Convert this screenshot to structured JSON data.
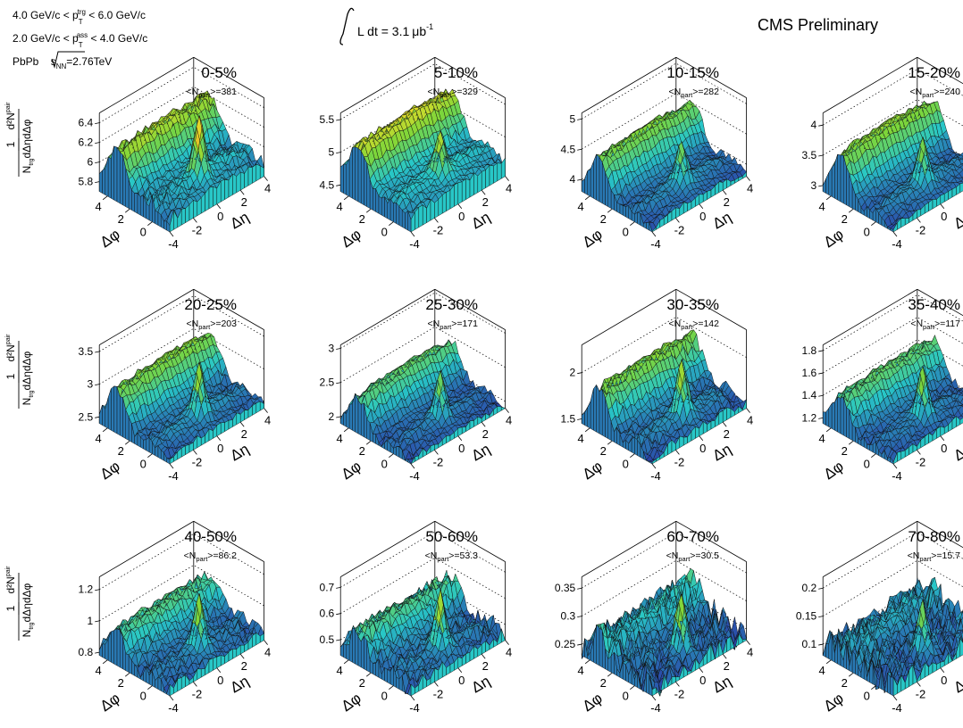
{
  "header": {
    "trigger_cut": "4.0 GeV/c < p",
    "trigger_sup": "trg",
    "trigger_sub": "T",
    "trigger_tail": " < 6.0 GeV/c",
    "assoc_cut": "2.0 GeV/c < p",
    "assoc_sup": "ass",
    "assoc_sub": "T",
    "assoc_tail": " < 4.0 GeV/c",
    "system_pre": "PbPb ",
    "system_sqrt": "s",
    "system_sub": "NN",
    "system_post": "=2.76TeV",
    "lumi_pre": "L dt = 3.1",
    "lumi_unit": "μb",
    "lumi_exp": "-1",
    "experiment": "CMS Preliminary"
  },
  "axis_text": {
    "ylabel_one": "1",
    "ylabel_num": "d²N",
    "ylabel_num_sup": "pair",
    "ylabel_den": "N",
    "ylabel_den_sub": "trg",
    "ylabel_den_tail": "dΔηdΔφ",
    "dphi": "Δφ",
    "deta": "Δη",
    "npart_pre": "<N",
    "npart_sub": "part",
    "npart_post": ">="
  },
  "colors": {
    "surface_low": "#2a3ea6",
    "surface_mid": "#28c7c7",
    "surface_green": "#7cd63a",
    "surface_peak": "#d62a1e",
    "grid_line": "#000000"
  },
  "chart_data": {
    "type": "surface",
    "x_axis": "Δη",
    "y_axis": "Δφ",
    "xlim": [
      -4,
      4
    ],
    "ylim": [
      -1.5708,
      4.7124
    ],
    "x_ticks": [
      "-4",
      "-2",
      "0",
      "2",
      "4"
    ],
    "y_ticks": [
      "0",
      "2",
      "4"
    ],
    "panels": [
      {
        "centrality": "0-5%",
        "npart": "381",
        "zticks": [
          "5.8",
          "6",
          "6.2",
          "6.4"
        ],
        "zlim": [
          5.7,
          6.5
        ],
        "base": 5.88,
        "ridge": 0.38,
        "peak": 0.55,
        "noise": 0.03
      },
      {
        "centrality": "5-10%",
        "npart": "329",
        "zticks": [
          "4.5",
          "5",
          "5.5"
        ],
        "zlim": [
          4.4,
          5.6
        ],
        "base": 4.7,
        "ridge": 0.62,
        "peak": 0.55,
        "noise": 0.03
      },
      {
        "centrality": "10-15%",
        "npart": "282",
        "zticks": [
          "4",
          "4.5",
          "5"
        ],
        "zlim": [
          3.8,
          5.1
        ],
        "base": 3.95,
        "ridge": 0.65,
        "peak": 0.6,
        "noise": 0.03
      },
      {
        "centrality": "15-20%",
        "npart": "240",
        "zticks": [
          "3",
          "3.5",
          "4"
        ],
        "zlim": [
          2.9,
          4.2
        ],
        "base": 3.05,
        "ridge": 0.7,
        "peak": 0.65,
        "noise": 0.03
      },
      {
        "centrality": "20-25%",
        "npart": "203",
        "zticks": [
          "2.5",
          "3",
          "3.5"
        ],
        "zlim": [
          2.4,
          3.6
        ],
        "base": 2.55,
        "ridge": 0.6,
        "peak": 0.7,
        "noise": 0.03
      },
      {
        "centrality": "25-30%",
        "npart": "171",
        "zticks": [
          "2",
          "2.5",
          "3"
        ],
        "zlim": [
          1.9,
          3.05
        ],
        "base": 2.0,
        "ridge": 0.5,
        "peak": 0.6,
        "noise": 0.03
      },
      {
        "centrality": "30-35%",
        "npart": "142",
        "zticks": [
          "1.5",
          "2"
        ],
        "zlim": [
          1.45,
          2.3
        ],
        "base": 1.55,
        "ridge": 0.42,
        "peak": 0.55,
        "noise": 0.03
      },
      {
        "centrality": "35-40%",
        "npart": "117",
        "zticks": [
          "1.2",
          "1.4",
          "1.6",
          "1.8"
        ],
        "zlim": [
          1.15,
          1.85
        ],
        "base": 1.22,
        "ridge": 0.3,
        "peak": 0.4,
        "noise": 0.02
      },
      {
        "centrality": "40-50%",
        "npart": "86.2",
        "zticks": [
          "0.8",
          "1",
          "1.2"
        ],
        "zlim": [
          0.78,
          1.28
        ],
        "base": 0.84,
        "ridge": 0.18,
        "peak": 0.3,
        "noise": 0.02
      },
      {
        "centrality": "50-60%",
        "npart": "53.3",
        "zticks": [
          "0.5",
          "0.6",
          "0.7"
        ],
        "zlim": [
          0.44,
          0.74
        ],
        "base": 0.48,
        "ridge": 0.1,
        "peak": 0.2,
        "noise": 0.015
      },
      {
        "centrality": "60-70%",
        "npart": "30.5",
        "zticks": [
          "0.25",
          "0.3",
          "0.35"
        ],
        "zlim": [
          0.23,
          0.37
        ],
        "base": 0.245,
        "ridge": 0.035,
        "peak": 0.1,
        "noise": 0.012
      },
      {
        "centrality": "70-80%",
        "npart": "15.7",
        "zticks": [
          "0.1",
          "0.15",
          "0.2"
        ],
        "zlim": [
          0.08,
          0.22
        ],
        "base": 0.095,
        "ridge": 0.02,
        "peak": 0.08,
        "noise": 0.012
      }
    ]
  }
}
